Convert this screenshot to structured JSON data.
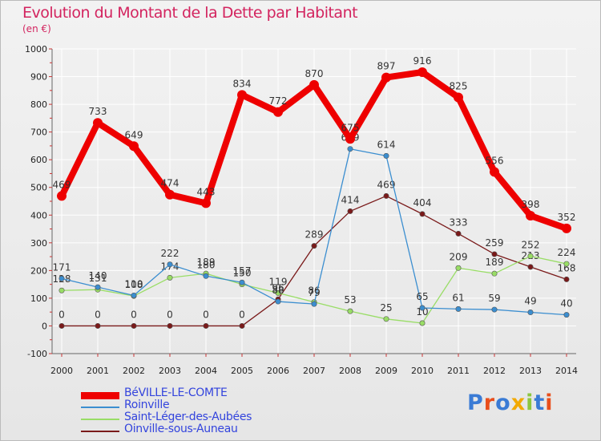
{
  "title": "Evolution du Montant de la Dette par Habitant",
  "unit_label": "(en €)",
  "brand_logo": "Proxiti",
  "colors": {
    "title": "#d3245f",
    "legend_text": "#3344dd",
    "axis_text": "#222222",
    "grid": "#ffffff",
    "background_top": "#f2f2f2",
    "background_bottom": "#e6e6e6"
  },
  "chart_data": {
    "type": "line",
    "x": [
      "2000",
      "2001",
      "2002",
      "2003",
      "2004",
      "2005",
      "2006",
      "2007",
      "2008",
      "2009",
      "2010",
      "2011",
      "2012",
      "2013",
      "2014"
    ],
    "ylim": [
      -100,
      1000
    ],
    "yticks": [
      -100,
      0,
      100,
      200,
      300,
      400,
      500,
      600,
      700,
      800,
      900,
      1000
    ],
    "grid": true,
    "legend_position": "bottom-left",
    "series": [
      {
        "name": "Oinville-sous-Auneau",
        "color": "#7a1a1a",
        "values": [
          0,
          0,
          0,
          0,
          0,
          0,
          96,
          289,
          414,
          469,
          404,
          333,
          259,
          213,
          168
        ],
        "labels": [
          "0",
          "0",
          "0",
          "0",
          "0",
          "0",
          "96",
          "289",
          "414",
          "469",
          "404",
          "333",
          "259",
          "213",
          "168"
        ]
      },
      {
        "name": "Saint-Léger-des-Aubées",
        "color": "#99dd66",
        "values": [
          128,
          131,
          108,
          174,
          189,
          150,
          119,
          86,
          53,
          25,
          10,
          209,
          189,
          252,
          224
        ],
        "labels": [
          "128",
          "131",
          "108",
          "174",
          "189",
          "150",
          "119",
          "86",
          "53",
          "25",
          "10",
          "209",
          "189",
          "252",
          "224"
        ]
      },
      {
        "name": "Roinville",
        "color": "#3b8ed0",
        "values": [
          171,
          140,
          110,
          222,
          180,
          157,
          88,
          79,
          639,
          614,
          65,
          61,
          59,
          49,
          40
        ],
        "labels": [
          "171",
          "140",
          "110",
          "222",
          "180",
          "157",
          "88",
          "79",
          "639",
          "614",
          "65",
          "61",
          "59",
          "49",
          "40"
        ]
      },
      {
        "name": "BéVILLE-LE-COMTE",
        "color": "#ee0000",
        "values": [
          469,
          733,
          649,
          474,
          443,
          834,
          772,
          870,
          675,
          897,
          916,
          825,
          556,
          398,
          352
        ],
        "labels": [
          "469",
          "733",
          "649",
          "474",
          "443",
          "834",
          "772",
          "870",
          "675",
          "897",
          "916",
          "825",
          "556",
          "398",
          "352"
        ]
      }
    ]
  },
  "legend": [
    {
      "label": "BéVILLE-LE-COMTE",
      "color": "#ee0000",
      "weight": "thick"
    },
    {
      "label": "Roinville",
      "color": "#3b8ed0",
      "weight": "thin"
    },
    {
      "label": "Saint-Léger-des-Aubées",
      "color": "#99dd66",
      "weight": "thin"
    },
    {
      "label": "Oinville-sous-Auneau",
      "color": "#7a1a1a",
      "weight": "thin"
    }
  ]
}
